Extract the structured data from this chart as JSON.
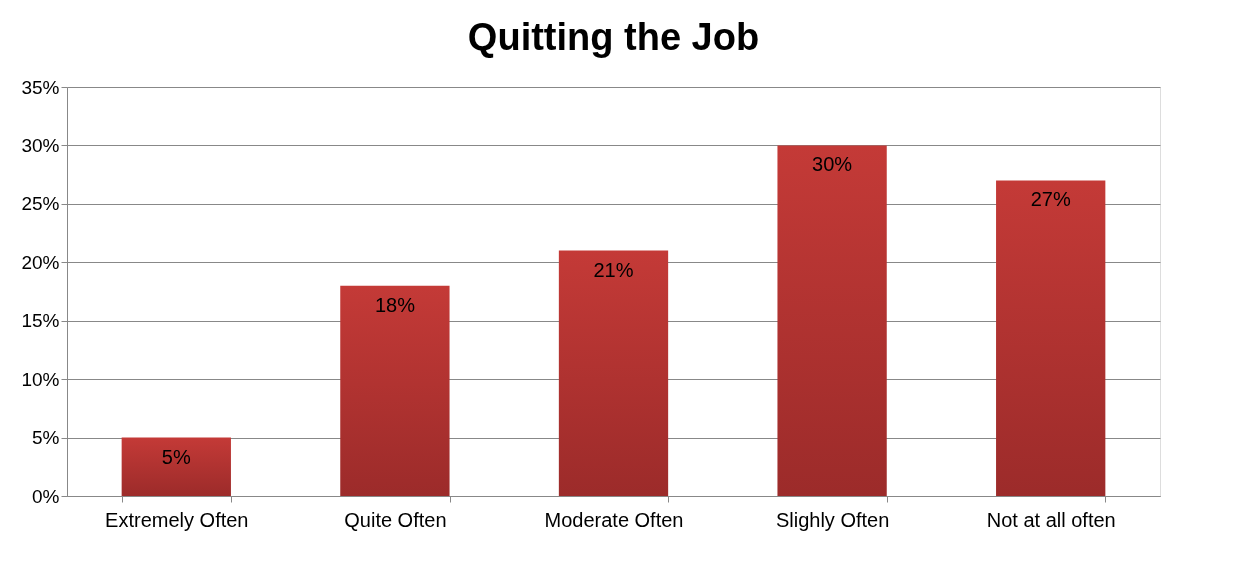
{
  "chart_data": {
    "type": "bar",
    "title": "Quitting the Job",
    "categories": [
      "Extremely Often",
      "Quite Often",
      "Moderate Often",
      "Slighly Often",
      "Not at all often"
    ],
    "values": [
      5,
      18,
      21,
      30,
      27
    ],
    "value_labels": [
      "5%",
      "18%",
      "21%",
      "30%",
      "27%"
    ],
    "color": "#c43a37",
    "ylim": [
      0,
      35
    ],
    "yticks": [
      {
        "value": 0,
        "label": "0%"
      },
      {
        "value": 5,
        "label": "5%"
      },
      {
        "value": 10,
        "label": "10%"
      },
      {
        "value": 15,
        "label": "15%"
      },
      {
        "value": 20,
        "label": "20%"
      },
      {
        "value": 25,
        "label": "25%"
      },
      {
        "value": 30,
        "label": "30%"
      },
      {
        "value": 35,
        "label": "35%"
      }
    ],
    "grid": "y"
  }
}
